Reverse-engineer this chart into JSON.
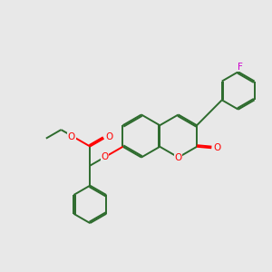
{
  "bg_color": "#e8e8e8",
  "bond_color": "#2d6b2d",
  "heteroatom_color": "#ff0000",
  "fluorine_color": "#cc00cc",
  "bond_width": 1.4,
  "dbo": 0.055,
  "figsize": [
    3.0,
    3.0
  ],
  "dpi": 100,
  "xlim": [
    0,
    10
  ],
  "ylim": [
    0,
    10
  ]
}
